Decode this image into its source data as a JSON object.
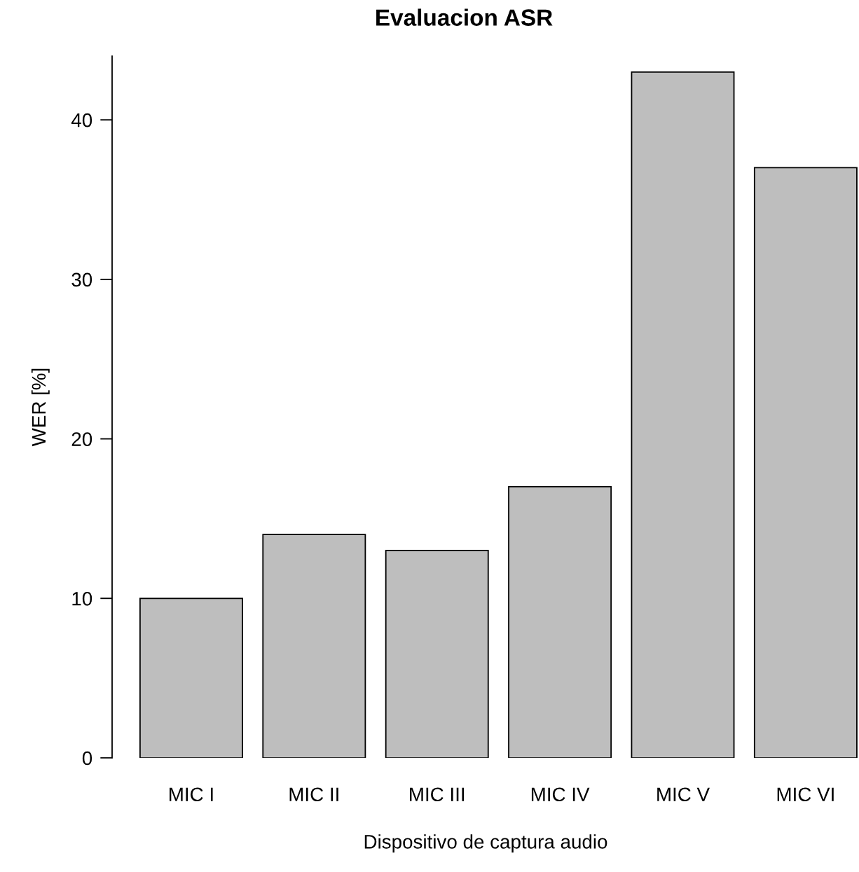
{
  "chart_data": {
    "type": "bar",
    "title": "Evaluacion ASR",
    "xlabel": "Dispositivo de captura audio",
    "ylabel": "WER [%]",
    "categories": [
      "MIC I",
      "MIC II",
      "MIC III",
      "MIC IV",
      "MIC V",
      "MIC VI"
    ],
    "values": [
      10,
      14,
      13,
      17,
      43,
      37
    ],
    "color": "#bebebe",
    "ylim": [
      0,
      44
    ],
    "yticks": [
      0,
      10,
      20,
      30,
      40
    ],
    "grid": false,
    "legend": false
  }
}
